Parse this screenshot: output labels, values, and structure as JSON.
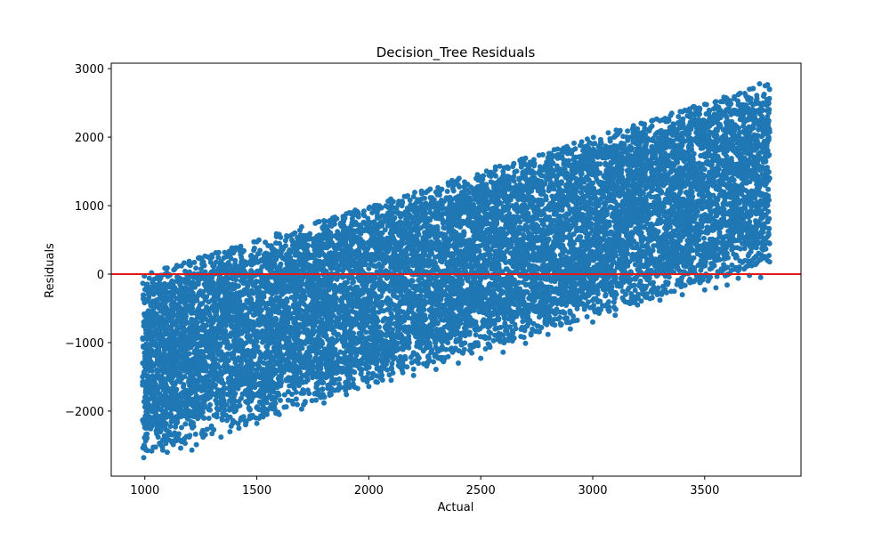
{
  "chart_data": {
    "type": "scatter",
    "title": "Decision_Tree Residuals",
    "xlabel": "Actual",
    "ylabel": "Residuals",
    "xlim": [
      850,
      3930
    ],
    "ylim": [
      -2950,
      3080
    ],
    "x_ticks": [
      1000,
      1500,
      2000,
      2500,
      3000,
      3500
    ],
    "y_ticks": [
      -2000,
      -1000,
      0,
      1000,
      2000,
      3000
    ],
    "x_tick_labels": [
      "1000",
      "1500",
      "2000",
      "2500",
      "3000",
      "3500"
    ],
    "y_tick_labels": [
      "−2000",
      "−1000",
      "0",
      "1000",
      "2000",
      "3000"
    ],
    "grid": false,
    "reference_line": {
      "y": 0,
      "color": "#e31a1c"
    },
    "series_color": "#1f77b4",
    "series": [
      {
        "values": [
          [
            995,
            -2680
          ],
          [
            1000,
            -2530
          ],
          [
            1005,
            -2340
          ],
          [
            990,
            -1500
          ],
          [
            1000,
            -1350
          ],
          [
            1010,
            -900
          ],
          [
            995,
            -700
          ],
          [
            1005,
            -400
          ],
          [
            1015,
            -200
          ],
          [
            1020,
            -60
          ],
          [
            1030,
            20
          ],
          [
            1040,
            -1650
          ],
          [
            1050,
            -1850
          ],
          [
            1060,
            -2230
          ],
          [
            1070,
            -2490
          ],
          [
            1080,
            -2570
          ],
          [
            1100,
            -2600
          ],
          [
            1120,
            -2440
          ],
          [
            1140,
            -2380
          ],
          [
            1160,
            -2540
          ],
          [
            1180,
            -2470
          ],
          [
            1210,
            -2570
          ],
          [
            1230,
            -2490
          ],
          [
            1260,
            -2380
          ],
          [
            1300,
            -2330
          ],
          [
            1340,
            -2380
          ],
          [
            1380,
            -2300
          ],
          [
            1420,
            -2250
          ],
          [
            1450,
            -2200
          ],
          [
            1500,
            -2180
          ],
          [
            1600,
            -2050
          ],
          [
            1700,
            -1970
          ],
          [
            1800,
            -1880
          ],
          [
            1900,
            -1760
          ],
          [
            2000,
            -1640
          ],
          [
            2100,
            -1550
          ],
          [
            2200,
            -1480
          ],
          [
            2300,
            -1390
          ],
          [
            2400,
            -1300
          ],
          [
            2500,
            -1230
          ],
          [
            2600,
            -1140
          ],
          [
            2700,
            -1010
          ],
          [
            2800,
            -880
          ],
          [
            2900,
            -800
          ],
          [
            3000,
            -700
          ],
          [
            3100,
            -600
          ],
          [
            3200,
            -450
          ],
          [
            3300,
            -380
          ],
          [
            3400,
            -300
          ],
          [
            3500,
            -230
          ],
          [
            3550,
            -200
          ],
          [
            3600,
            -160
          ],
          [
            3650,
            -60
          ],
          [
            3700,
            -20
          ],
          [
            3750,
            -50
          ],
          [
            3780,
            200
          ],
          [
            3785,
            600
          ],
          [
            3790,
            1400
          ],
          [
            3780,
            2300
          ],
          [
            3770,
            2750
          ],
          [
            3745,
            2780
          ],
          [
            3700,
            2700
          ],
          [
            3650,
            2620
          ],
          [
            3600,
            2560
          ],
          [
            3550,
            2520
          ],
          [
            3500,
            2480
          ],
          [
            3400,
            2370
          ],
          [
            3300,
            2240
          ],
          [
            3200,
            2120
          ],
          [
            3100,
            2010
          ],
          [
            3000,
            1900
          ],
          [
            2900,
            1800
          ],
          [
            2800,
            1700
          ],
          [
            2700,
            1600
          ],
          [
            2600,
            1500
          ],
          [
            2500,
            1420
          ],
          [
            2400,
            1300
          ],
          [
            2300,
            1200
          ],
          [
            2200,
            1130
          ],
          [
            2100,
            1030
          ],
          [
            2000,
            960
          ],
          [
            1900,
            880
          ],
          [
            1800,
            780
          ],
          [
            1700,
            690
          ],
          [
            1600,
            580
          ],
          [
            1500,
            470
          ],
          [
            1400,
            380
          ],
          [
            1300,
            280
          ],
          [
            1200,
            170
          ],
          [
            1100,
            90
          ]
        ]
      }
    ]
  }
}
